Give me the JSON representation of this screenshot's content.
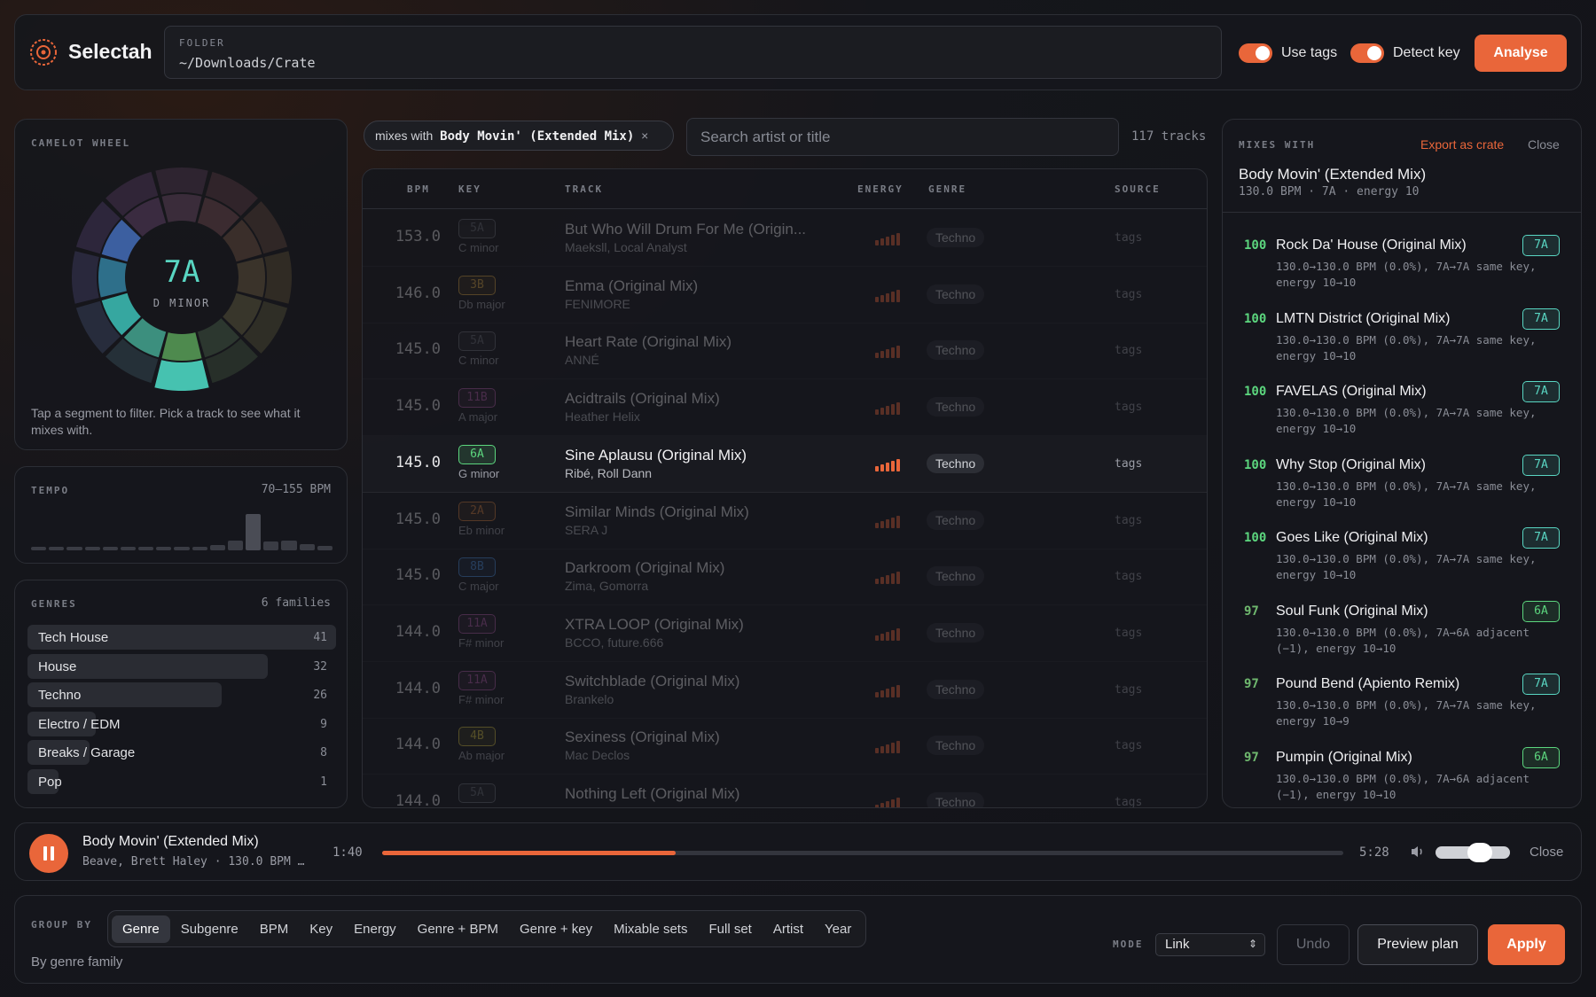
{
  "header": {
    "app_name": "Selectah",
    "folder_label": "FOLDER",
    "folder_value": "~/Downloads/Crate",
    "use_tags_label": "Use tags",
    "detect_key_label": "Detect key",
    "analyse_label": "Analyse",
    "accent": "#e9663a"
  },
  "camelot": {
    "title": "CAMELOT WHEEL",
    "selected_key": "7A",
    "selected_name": "D MINOR",
    "hint": "Tap a segment to filter. Pick a track to see what it mixes with."
  },
  "tempo": {
    "title": "TEMPO",
    "range": "70–155 BPM",
    "histogram": [
      0.08,
      0.04,
      0.04,
      0.08,
      0.04,
      0.04,
      0.04,
      0.04,
      0.04,
      0.06,
      0.12,
      0.22,
      0.82,
      0.2,
      0.22,
      0.14,
      0.1
    ]
  },
  "genres": {
    "title": "GENRES",
    "families": "6 families",
    "items": [
      {
        "name": "Tech House",
        "count": "41",
        "share": 1.0
      },
      {
        "name": "House",
        "count": "32",
        "share": 0.78
      },
      {
        "name": "Techno",
        "count": "26",
        "share": 0.63
      },
      {
        "name": "Electro / EDM",
        "count": "9",
        "share": 0.22
      },
      {
        "name": "Breaks / Garage",
        "count": "8",
        "share": 0.2
      },
      {
        "name": "Pop",
        "count": "1",
        "share": 0.03
      }
    ]
  },
  "filter": {
    "chip_prefix": "mixes with",
    "chip_track": "Body Movin' (Extended Mix)",
    "chip_close": "×",
    "search_placeholder": "Search artist or title",
    "track_count": "117 tracks"
  },
  "table": {
    "headers": {
      "bpm": "BPM",
      "key": "KEY",
      "track": "TRACK",
      "energy": "ENERGY",
      "genre": "GENRE",
      "source": "SOURCE"
    },
    "rows": [
      {
        "bpm": "153.0",
        "key": "5A",
        "key_name": "C minor",
        "title": "But Who Will Drum For Me (Origin...",
        "artist": "Maeksll, Local Analyst",
        "energy": 0.9,
        "genre": "Techno",
        "source": "tags",
        "key_color": "#6a6d76",
        "dim": true
      },
      {
        "bpm": "146.0",
        "key": "3B",
        "key_name": "Db major",
        "title": "Enma (Original Mix)",
        "artist": "FENIMORE",
        "energy": 0.9,
        "genre": "Techno",
        "source": "tags",
        "key_color": "#d9a441",
        "dim": true
      },
      {
        "bpm": "145.0",
        "key": "5A",
        "key_name": "C minor",
        "title": "Heart Rate (Original Mix)",
        "artist": "ANNÉ",
        "energy": 0.9,
        "genre": "Techno",
        "source": "tags",
        "key_color": "#6a6d76",
        "dim": true
      },
      {
        "bpm": "145.0",
        "key": "11B",
        "key_name": "A major",
        "title": "Acidtrails (Original Mix)",
        "artist": "Heather Helix",
        "energy": 0.9,
        "genre": "Techno",
        "source": "tags",
        "key_color": "#b25aa8",
        "dim": true
      },
      {
        "bpm": "145.0",
        "key": "6A",
        "key_name": "G minor",
        "title": "Sine Aplausu (Original Mix)",
        "artist": "Ribé, Roll Dann",
        "energy": 1.0,
        "genre": "Techno",
        "source": "tags",
        "key_color": "#5cd67e",
        "dim": false
      },
      {
        "bpm": "145.0",
        "key": "2A",
        "key_name": "Eb minor",
        "title": "Similar Minds (Original Mix)",
        "artist": "SERA J",
        "energy": 0.9,
        "genre": "Techno",
        "source": "tags",
        "key_color": "#d9813c",
        "dim": true
      },
      {
        "bpm": "145.0",
        "key": "8B",
        "key_name": "C major",
        "title": "Darkroom (Original Mix)",
        "artist": "Zima, Gomorra",
        "energy": 0.9,
        "genre": "Techno",
        "source": "tags",
        "key_color": "#4a8fe0",
        "dim": true
      },
      {
        "bpm": "144.0",
        "key": "11A",
        "key_name": "F# minor",
        "title": "XTRA LOOP (Original Mix)",
        "artist": "BCCO, future.666",
        "energy": 0.9,
        "genre": "Techno",
        "source": "tags",
        "key_color": "#b25aa8",
        "dim": true
      },
      {
        "bpm": "144.0",
        "key": "11A",
        "key_name": "F# minor",
        "title": "Switchblade (Original Mix)",
        "artist": "Brankelo",
        "energy": 0.9,
        "genre": "Techno",
        "source": "tags",
        "key_color": "#b25aa8",
        "dim": true
      },
      {
        "bpm": "144.0",
        "key": "4B",
        "key_name": "Ab major",
        "title": "Sexiness (Original Mix)",
        "artist": "Mac Declos",
        "energy": 0.9,
        "genre": "Techno",
        "source": "tags",
        "key_color": "#d9c441",
        "dim": true
      },
      {
        "bpm": "144.0",
        "key": "5A",
        "key_name": "C minor",
        "title": "Nothing Left (Original Mix)",
        "artist": "",
        "energy": 0.9,
        "genre": "Techno",
        "source": "tags",
        "key_color": "#6a6d76",
        "dim": true
      }
    ]
  },
  "mixes": {
    "title": "MIXES WITH",
    "export_label": "Export as crate",
    "close_label": "Close",
    "track_title": "Body Movin' (Extended Mix)",
    "track_sub": "130.0 BPM · 7A · energy 10",
    "items": [
      {
        "score": "100",
        "title": "Rock Da' House (Original Mix)",
        "detail": "130.0→130.0 BPM (0.0%), 7A→7A same key, energy 10→10",
        "key": "7A",
        "key_color": "#59d6c2",
        "score_color": "#5cd67e"
      },
      {
        "score": "100",
        "title": "LMTN District (Original Mix)",
        "detail": "130.0→130.0 BPM (0.0%), 7A→7A same key, energy 10→10",
        "key": "7A",
        "key_color": "#59d6c2",
        "score_color": "#5cd67e"
      },
      {
        "score": "100",
        "title": "FAVELAS (Original Mix)",
        "detail": "130.0→130.0 BPM (0.0%), 7A→7A same key, energy 10→10",
        "key": "7A",
        "key_color": "#59d6c2",
        "score_color": "#5cd67e"
      },
      {
        "score": "100",
        "title": "Why Stop (Original Mix)",
        "detail": "130.0→130.0 BPM (0.0%), 7A→7A same key, energy 10→10",
        "key": "7A",
        "key_color": "#59d6c2",
        "score_color": "#5cd67e"
      },
      {
        "score": "100",
        "title": "Goes Like (Original Mix)",
        "detail": "130.0→130.0 BPM (0.0%), 7A→7A same key, energy 10→10",
        "key": "7A",
        "key_color": "#59d6c2",
        "score_color": "#5cd67e"
      },
      {
        "score": "97",
        "title": "Soul Funk (Original Mix)",
        "detail": "130.0→130.0 BPM (0.0%), 7A→6A adjacent (−1), energy 10→10",
        "key": "6A",
        "key_color": "#5cd67e",
        "score_color": "#6fb86e"
      },
      {
        "score": "97",
        "title": "Pound Bend (Apiento Remix)",
        "detail": "130.0→130.0 BPM (0.0%), 7A→7A same key, energy 10→9",
        "key": "7A",
        "key_color": "#59d6c2",
        "score_color": "#6fb86e"
      },
      {
        "score": "97",
        "title": "Pumpin (Original Mix)",
        "detail": "130.0→130.0 BPM (0.0%), 7A→6A adjacent (−1), energy 10→10",
        "key": "6A",
        "key_color": "#5cd67e",
        "score_color": "#6fb86e"
      }
    ]
  },
  "player": {
    "title": "Body Movin' (Extended Mix)",
    "subtitle": "Beave, Brett Haley · 130.0 BPM …",
    "elapsed": "1:40",
    "total": "5:28",
    "progress": 0.305,
    "volume": 0.6,
    "close_label": "Close"
  },
  "group": {
    "label": "GROUP BY",
    "tabs": [
      "Genre",
      "Subgenre",
      "BPM",
      "Key",
      "Energy",
      "Genre + BPM",
      "Genre + key",
      "Mixable sets",
      "Full set",
      "Artist",
      "Year"
    ],
    "active": "Genre",
    "description": "By genre family",
    "mode_label": "MODE",
    "mode_value": "Link",
    "undo_label": "Undo",
    "preview_label": "Preview plan",
    "apply_label": "Apply"
  }
}
